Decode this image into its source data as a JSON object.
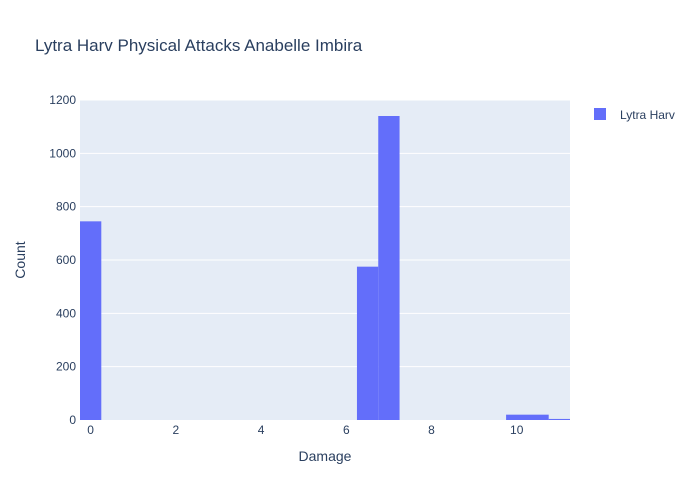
{
  "chart_data": {
    "type": "bar",
    "title": "Lytra Harv Physical Attacks Anabelle Imbira",
    "xlabel": "Damage",
    "ylabel": "Count",
    "xlim": [
      -0.25,
      11.25
    ],
    "ylim": [
      0,
      1200
    ],
    "x_ticks": [
      0,
      2,
      4,
      6,
      8,
      10
    ],
    "y_ticks": [
      0,
      200,
      400,
      600,
      800,
      1000,
      1200
    ],
    "grid": true,
    "legend_position": "top-right",
    "colors": {
      "plot_background": "#E5ECF6",
      "grid": "#ffffff",
      "bar": "#636EFA",
      "text": "#2a3f5f"
    },
    "series": [
      {
        "name": "Lytra Harv",
        "bins": [
          {
            "x0": -0.25,
            "x1": 0.25,
            "count": 745
          },
          {
            "x0": 6.25,
            "x1": 6.75,
            "count": 575
          },
          {
            "x0": 6.75,
            "x1": 7.25,
            "count": 1140
          },
          {
            "x0": 9.75,
            "x1": 10.75,
            "count": 20
          },
          {
            "x0": 10.75,
            "x1": 11.25,
            "count": 4
          }
        ]
      }
    ]
  }
}
